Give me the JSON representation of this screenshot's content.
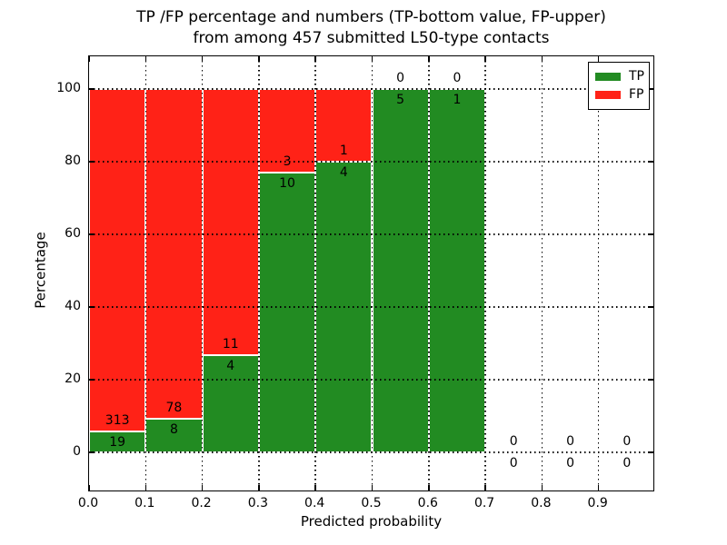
{
  "figure": {
    "title_line1": "TP /FP percentage and numbers (TP-bottom value, FP-upper)",
    "title_line2": "from among 457 submitted L50-type contacts"
  },
  "chart_data": {
    "type": "bar",
    "stacked": true,
    "title": "TP /FP percentage and numbers (TP-bottom value, FP-upper)\nfrom among 457 submitted L50-type contacts",
    "title_lines": [
      "TP /FP percentage and numbers (TP-bottom value, FP-upper)",
      "from among 457 submitted L50-type contacts"
    ],
    "xlabel": "Predicted probability",
    "ylabel": "Percentage",
    "bin_starts": [
      0.0,
      0.1,
      0.2,
      0.3,
      0.4,
      0.5,
      0.6,
      0.7,
      0.8,
      0.9
    ],
    "bin_width": 0.1,
    "series": [
      {
        "name": "TP",
        "color": "#228B22",
        "counts": [
          19,
          8,
          4,
          10,
          4,
          5,
          1,
          0,
          0,
          0
        ],
        "percents": [
          5.72,
          9.3,
          26.67,
          76.92,
          80.0,
          100.0,
          100.0,
          0.0,
          0.0,
          0.0
        ]
      },
      {
        "name": "FP",
        "color": "#FF2217",
        "counts": [
          313,
          78,
          11,
          3,
          1,
          0,
          0,
          0,
          0,
          0
        ],
        "percents": [
          94.28,
          90.7,
          73.33,
          23.08,
          20.0,
          0.0,
          0.0,
          0.0,
          0.0,
          0.0
        ]
      }
    ],
    "bar_label_convention": "TP-bottom value, FP-upper",
    "xticks": [
      "0.0",
      "0.1",
      "0.2",
      "0.3",
      "0.4",
      "0.5",
      "0.6",
      "0.7",
      "0.8",
      "0.9"
    ],
    "xtick_values": [
      0.0,
      0.1,
      0.2,
      0.3,
      0.4,
      0.5,
      0.6,
      0.7,
      0.8,
      0.9
    ],
    "yticks": [
      "0",
      "20",
      "40",
      "60",
      "80",
      "100"
    ],
    "ytick_values": [
      0,
      20,
      40,
      60,
      80,
      100
    ],
    "xlim": [
      0.0,
      1.0
    ],
    "ylim": [
      -11,
      109
    ],
    "grid": {
      "on": true,
      "style": "dotted",
      "color": "#000000"
    },
    "bar_edge_color": "#ffffff",
    "legend": {
      "position": "upper-right",
      "entries": [
        {
          "label": "TP",
          "color": "#228B22"
        },
        {
          "label": "FP",
          "color": "#FF2217"
        }
      ]
    }
  }
}
